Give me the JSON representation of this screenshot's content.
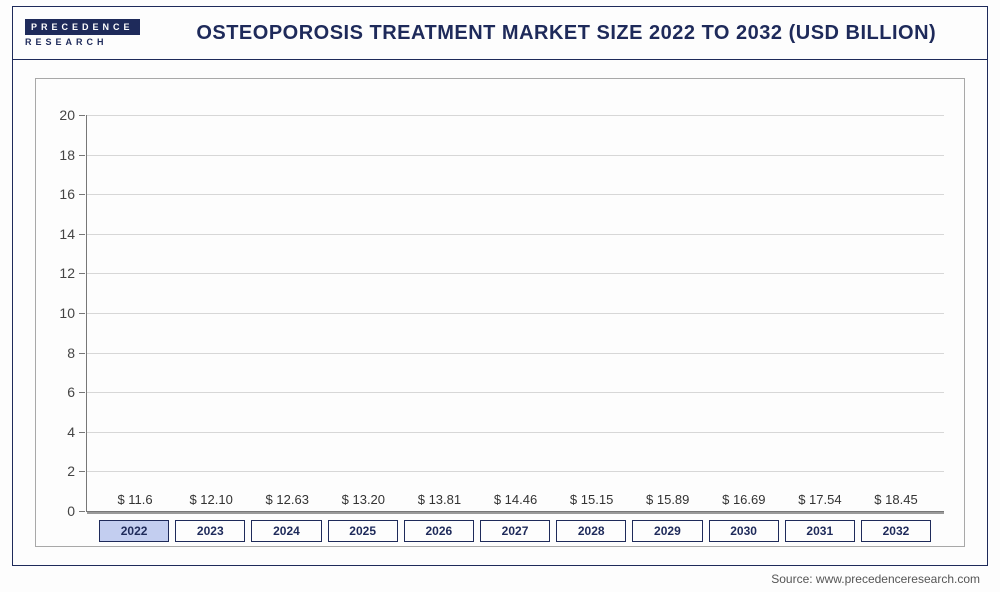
{
  "logo": {
    "top": "PRECEDENCE",
    "bottom": "RESEARCH"
  },
  "title": "OSTEOPOROSIS TREATMENT MARKET SIZE 2022 TO 2032 (USD BILLION)",
  "source": "Source: www.precedenceresearch.com",
  "chart": {
    "type": "bar",
    "ylim": [
      0,
      20
    ],
    "ytick_step": 2,
    "yticks": [
      0,
      2,
      4,
      6,
      8,
      10,
      12,
      14,
      16,
      18,
      20
    ],
    "grid_color": "#d7d7d7",
    "axis_color": "#777777",
    "background_color": "#ffffff",
    "label_fontsize": 13,
    "tick_fontsize": 14,
    "categories": [
      "2022",
      "2023",
      "2024",
      "2025",
      "2026",
      "2027",
      "2028",
      "2029",
      "2030",
      "2031",
      "2032"
    ],
    "values": [
      11.6,
      12.1,
      12.63,
      13.2,
      13.81,
      14.46,
      15.15,
      15.89,
      16.69,
      17.54,
      18.45
    ],
    "value_labels": [
      "$ 11.6",
      "$ 12.10",
      "$ 12.63",
      "$ 13.20",
      "$ 13.81",
      "$ 14.46",
      "$ 15.15",
      "$ 15.89",
      "$ 16.69",
      "$ 17.54",
      "$ 18.45"
    ],
    "bar_colors": [
      "#b9c5e8",
      "#5a6aa0",
      "#45548f",
      "#3b4a87",
      "#2f3e7a",
      "#24336e",
      "#1b2a63",
      "#16255c",
      "#121f54",
      "#101c4e",
      "#0d1948"
    ],
    "active_category_index": 0,
    "x_label_border_color": "#1e2a5a",
    "x_label_active_bg": "#c3cef0"
  }
}
